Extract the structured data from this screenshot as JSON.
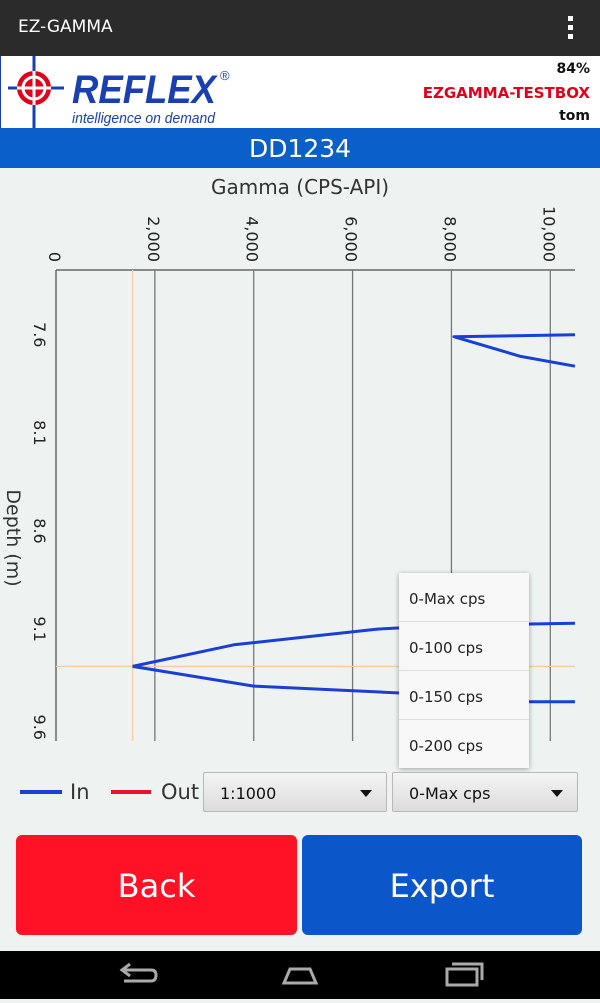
{
  "app": {
    "title": "EZ-GAMMA"
  },
  "header": {
    "logo_text": "REFLEX",
    "logo_tagline": "intelligence on demand",
    "registered_mark": "®",
    "battery": "84%",
    "device": "EZGAMMA-TESTBOX",
    "user": "tom"
  },
  "hole": {
    "id": "DD1234"
  },
  "colors": {
    "accent": "#0a5fc8",
    "in_series": "#1a3fd4",
    "out_series": "#e8142c",
    "back": "#ff1226",
    "export": "#0b56c9"
  },
  "chart_data": {
    "type": "line",
    "title": "Gamma (CPS-API)",
    "xlabel": "Gamma (CPS-API)",
    "ylabel": "Depth (m)",
    "x_ticks": [
      "0",
      "2,000",
      "4,000",
      "6,000",
      "8,000",
      "10,000"
    ],
    "y_ticks": [
      "7.6",
      "8.1",
      "8.6",
      "9.1",
      "9.6"
    ],
    "xlim": [
      0,
      10500
    ],
    "ylim": [
      7.27,
      9.67
    ],
    "grid": true,
    "series": [
      {
        "name": "In",
        "segments": [
          {
            "x": [
              10500,
              8050,
              9400,
              10500
            ],
            "y": [
              7.6,
              7.61,
              7.71,
              7.76
            ]
          },
          {
            "x": [
              10500,
              8000,
              6500,
              3600,
              1550
            ],
            "y": [
              9.07,
              9.08,
              9.1,
              9.18,
              9.29
            ]
          },
          {
            "x": [
              1550,
              4000,
              6500,
              8200,
              9500,
              10500
            ],
            "y": [
              9.29,
              9.39,
              9.42,
              9.44,
              9.47,
              9.47
            ]
          }
        ]
      },
      {
        "name": "Out",
        "segments": []
      }
    ],
    "crosshair": {
      "x": 1550,
      "y": 9.29
    }
  },
  "dropdown": {
    "options": [
      "0-Max cps",
      "0-100 cps",
      "0-150 cps",
      "0-200 cps"
    ]
  },
  "legend": {
    "in_label": "In",
    "out_label": "Out"
  },
  "controls": {
    "scale_value": "1:1000",
    "range_value": "0-Max cps"
  },
  "buttons": {
    "back": "Back",
    "export": "Export"
  },
  "nav": {
    "back_icon": "back-arrow-icon",
    "home_icon": "home-icon",
    "recents_icon": "recent-apps-icon"
  }
}
